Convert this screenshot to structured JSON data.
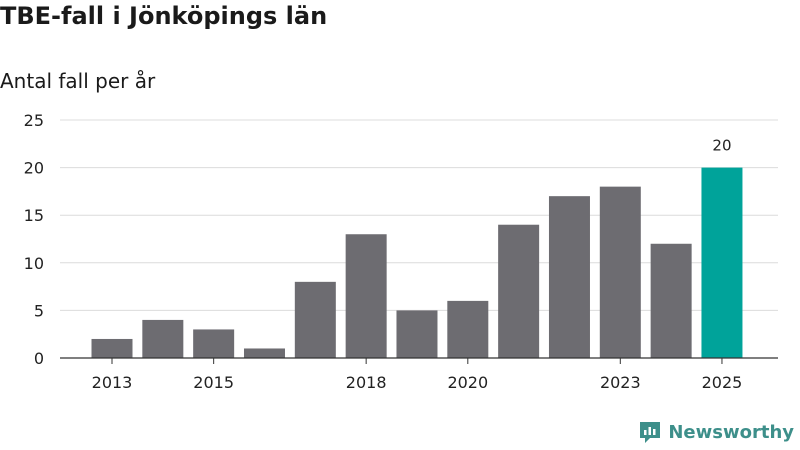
{
  "title": "TBE-fall i Jönköpings län",
  "subtitle": "Antal fall per år",
  "brand": {
    "name": "Newsworthy",
    "icon": "newsworthy-logo-icon",
    "color": "#3d8f8a"
  },
  "colors": {
    "bar": "#6d6c71",
    "highlight": "#00a39a",
    "grid": "#dcdcdc",
    "axis": "#333333"
  },
  "chart_data": {
    "type": "bar",
    "title": "TBE-fall i Jönköpings län",
    "subtitle": "Antal fall per år",
    "xlabel": "",
    "ylabel": "Antal fall per år",
    "categories": [
      "2013",
      "2014",
      "2015",
      "2016",
      "2017",
      "2018",
      "2019",
      "2020",
      "2021",
      "2022",
      "2023",
      "2024",
      "2025"
    ],
    "values": [
      2,
      4,
      3,
      1,
      8,
      13,
      5,
      6,
      14,
      17,
      18,
      12,
      20
    ],
    "highlight_index": 12,
    "data_labels": [
      {
        "index": 12,
        "text": "20"
      }
    ],
    "x_tick_labels": [
      "2013",
      "2015",
      "2018",
      "2020",
      "2023",
      "2025"
    ],
    "y_ticks": [
      0,
      5,
      10,
      15,
      20,
      25
    ],
    "ylim": [
      0,
      25
    ],
    "grid": true
  }
}
